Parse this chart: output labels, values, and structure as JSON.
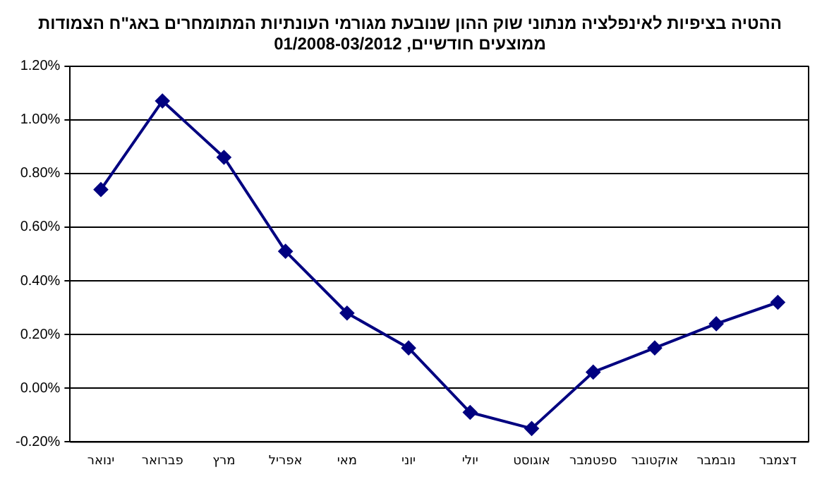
{
  "chart_data": {
    "type": "line",
    "title": "ההטיה בציפיות לאינפלציה מנתוני שוק ההון שנובעת מגורמי העונתיות המתומחרים באג\"ח הצמודות",
    "subtitle": "ממוצעים חודשיים, 01/2008-03/2012",
    "categories": [
      "ינואר",
      "פברואר",
      "מרץ",
      "אפריל",
      "מאי",
      "יוני",
      "יולי",
      "אוגוסט",
      "ספטמבר",
      "אוקטובר",
      "נובמבר",
      "דצמבר"
    ],
    "series": [
      {
        "color": "#000080",
        "values": [
          0.74,
          1.07,
          0.86,
          0.51,
          0.28,
          0.15,
          -0.09,
          -0.15,
          0.06,
          0.15,
          0.24,
          0.32
        ]
      }
    ],
    "ylim": [
      -0.2,
      1.2
    ],
    "yticks": [
      {
        "value": -0.2,
        "label": "-0.20%"
      },
      {
        "value": 0,
        "label": "0.00%"
      },
      {
        "value": 0.2,
        "label": "0.20%"
      },
      {
        "value": 0.4,
        "label": "0.40%"
      },
      {
        "value": 0.6,
        "label": "0.60%"
      },
      {
        "value": 0.8,
        "label": "0.80%"
      },
      {
        "value": 1.0,
        "label": "1.00%"
      },
      {
        "value": 1.2,
        "label": "1.20%"
      }
    ],
    "grid": "y",
    "legend": false,
    "marker": "diamond",
    "line_style": "solid"
  }
}
